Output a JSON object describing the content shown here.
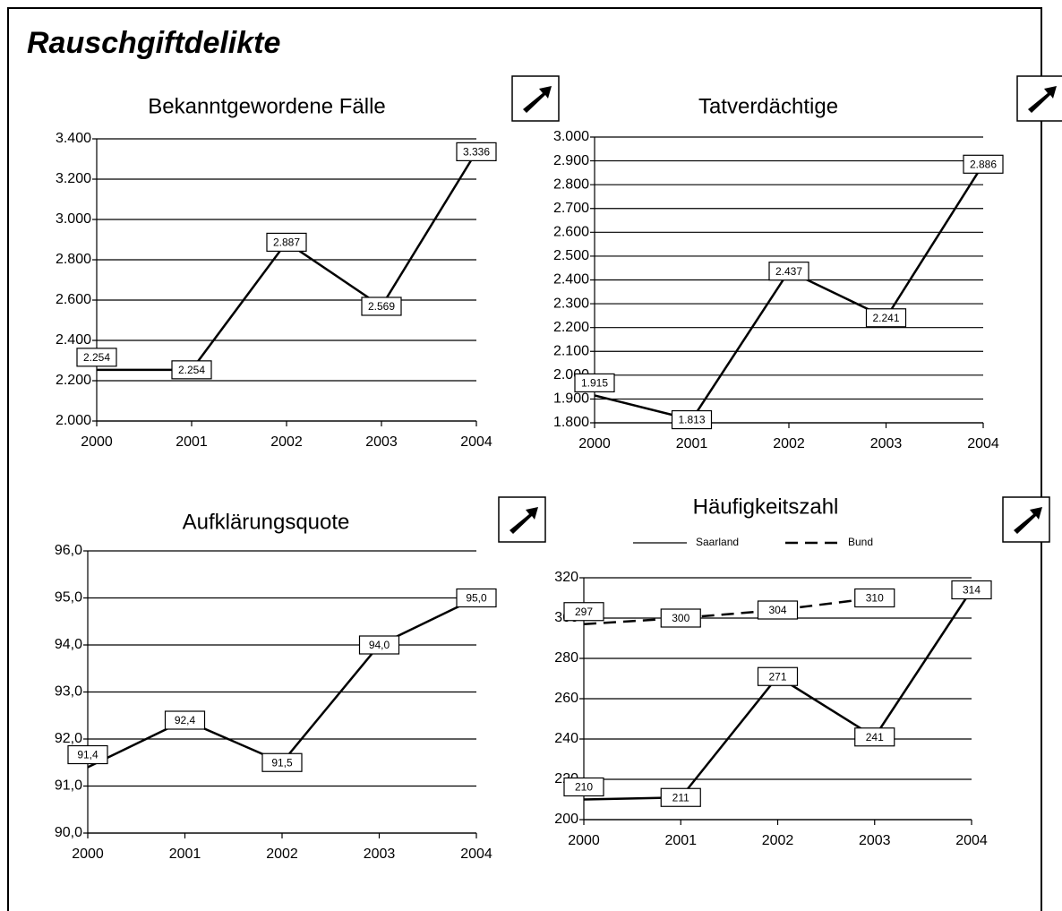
{
  "title": "Rauschgiftdelikte",
  "chart_data": [
    {
      "type": "line",
      "title": "Bekanntgewordene Fälle",
      "categories": [
        "2000",
        "2001",
        "2002",
        "2003",
        "2004"
      ],
      "values": [
        2254,
        2254,
        2887,
        2569,
        3336
      ],
      "value_labels": [
        "2.254",
        "2.254",
        "2.887",
        "2.569",
        "3.336"
      ],
      "color": "#000000",
      "grid": true,
      "ylim": [
        2000,
        3400
      ],
      "yticks": [
        {
          "value": 2000,
          "label": "2.000"
        },
        {
          "value": 2200,
          "label": "2.200"
        },
        {
          "value": 2400,
          "label": "2.400"
        },
        {
          "value": 2600,
          "label": "2.600"
        },
        {
          "value": 2800,
          "label": "2.800"
        },
        {
          "value": 3000,
          "label": "3.000"
        },
        {
          "value": 3200,
          "label": "3.200"
        },
        {
          "value": 3400,
          "label": "3.400"
        }
      ]
    },
    {
      "type": "line",
      "title": "Tatverdächtige",
      "categories": [
        "2000",
        "2001",
        "2002",
        "2003",
        "2004"
      ],
      "values": [
        1915,
        1813,
        2437,
        2241,
        2886
      ],
      "value_labels": [
        "1.915",
        "1.813",
        "2.437",
        "2.241",
        "2.886"
      ],
      "color": "#000000",
      "grid": true,
      "ylim": [
        1800,
        3000
      ],
      "yticks": [
        {
          "value": 1800,
          "label": "1.800"
        },
        {
          "value": 1900,
          "label": "1.900"
        },
        {
          "value": 2000,
          "label": "2.000"
        },
        {
          "value": 2100,
          "label": "2.100"
        },
        {
          "value": 2200,
          "label": "2.200"
        },
        {
          "value": 2300,
          "label": "2.300"
        },
        {
          "value": 2400,
          "label": "2.400"
        },
        {
          "value": 2500,
          "label": "2.500"
        },
        {
          "value": 2600,
          "label": "2.600"
        },
        {
          "value": 2700,
          "label": "2.700"
        },
        {
          "value": 2800,
          "label": "2.800"
        },
        {
          "value": 2900,
          "label": "2.900"
        },
        {
          "value": 3000,
          "label": "3.000"
        }
      ]
    },
    {
      "type": "line",
      "title": "Aufklärungsquote",
      "categories": [
        "2000",
        "2001",
        "2002",
        "2003",
        "2004"
      ],
      "values": [
        91.4,
        92.4,
        91.5,
        94.0,
        95.0
      ],
      "value_labels": [
        "91,4",
        "92,4",
        "91,5",
        "94,0",
        "95,0"
      ],
      "color": "#000000",
      "grid": true,
      "ylim": [
        90,
        96
      ],
      "yticks": [
        {
          "value": 90,
          "label": "90,0"
        },
        {
          "value": 91,
          "label": "91,0"
        },
        {
          "value": 92,
          "label": "92,0"
        },
        {
          "value": 93,
          "label": "93,0"
        },
        {
          "value": 94,
          "label": "94,0"
        },
        {
          "value": 95,
          "label": "95,0"
        },
        {
          "value": 96,
          "label": "96,0"
        }
      ]
    },
    {
      "type": "line",
      "title": "Häufigkeitszahl",
      "categories": [
        "2000",
        "2001",
        "2002",
        "2003",
        "2004"
      ],
      "series": [
        {
          "name": "Saarland",
          "color": "#000000",
          "dashed": false,
          "values": [
            210,
            211,
            271,
            241,
            314
          ]
        },
        {
          "name": "Bund",
          "color": "#000000",
          "dashed": true,
          "values": [
            297,
            300,
            304,
            310,
            null
          ]
        }
      ],
      "legend": "top",
      "grid": true,
      "ylim": [
        200,
        320
      ],
      "yticks": [
        200,
        220,
        240,
        260,
        280,
        300,
        320
      ]
    }
  ]
}
